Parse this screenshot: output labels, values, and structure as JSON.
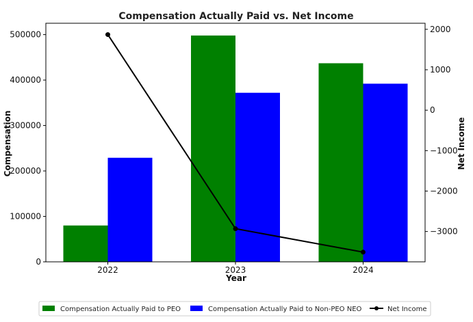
{
  "chart_data": {
    "type": "bar",
    "title": "Compensation Actually Paid vs. Net Income",
    "xlabel": "Year",
    "ylabel": "Compensation",
    "y2label": "Net Income",
    "categories": [
      "2022",
      "2023",
      "2024"
    ],
    "ylim": [
      0,
      525000
    ],
    "y2lim": [
      -3750,
      2150
    ],
    "yticks": [
      0,
      100000,
      200000,
      300000,
      400000,
      500000
    ],
    "y2ticks": [
      -3000,
      -2000,
      -1000,
      0,
      1000,
      2000
    ],
    "series": [
      {
        "name": "Compensation Actually Paid to PEO",
        "kind": "bar",
        "color": "#008000",
        "values": [
          80000,
          498000,
          437000
        ]
      },
      {
        "name": "Compensation Actually Paid to Non-PEO NEO",
        "kind": "bar",
        "color": "#0000ff",
        "values": [
          229000,
          372000,
          392000
        ]
      },
      {
        "name": "Net Income",
        "kind": "line",
        "axis": "right",
        "color": "#000000",
        "values": [
          1870,
          -2930,
          -3510
        ]
      }
    ],
    "legend": "bottom",
    "grid": false
  }
}
